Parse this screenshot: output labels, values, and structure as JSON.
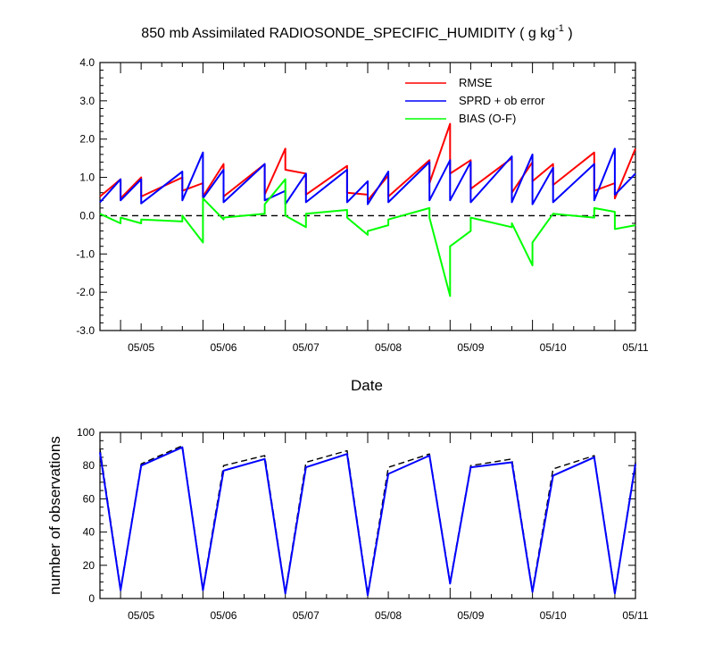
{
  "chart_data": [
    {
      "type": "line",
      "title": "850 mb Assimilated RADIOSONDE_SPECIFIC_HUMIDITY ( g kg",
      "title_sup": "-1",
      "title_end": " )",
      "xlabel": "Date",
      "ylabel": "",
      "ylim": [
        -3.0,
        4.0
      ],
      "xlim": [
        4.5,
        11.0
      ],
      "yticks": [
        "-3.0",
        "-2.0",
        "-1.0",
        "0.0",
        "1.0",
        "2.0",
        "3.0",
        "4.0"
      ],
      "xtick_labels": [
        "05/05",
        "05/06",
        "05/07",
        "05/08",
        "05/09",
        "05/10",
        "05/11"
      ],
      "zero_line": "dashed",
      "legend_position": "top-right",
      "series": [
        {
          "name": "RMSE",
          "color": "#ff0000",
          "x": [
            4.5,
            4.75,
            4.75,
            5.0,
            5.0,
            5.5,
            5.5,
            5.75,
            5.75,
            6.0,
            6.0,
            6.5,
            6.5,
            6.75,
            6.75,
            7.0,
            7.0,
            7.5,
            7.5,
            7.75,
            7.75,
            8.0,
            8.0,
            8.5,
            8.5,
            8.75,
            8.75,
            9.0,
            9.0,
            9.5,
            9.5,
            9.75,
            9.75,
            10.0,
            10.0,
            10.5,
            10.5,
            10.75,
            10.75,
            11.0
          ],
          "y": [
            0.5,
            0.95,
            0.45,
            1.0,
            0.5,
            1.0,
            0.65,
            0.85,
            0.5,
            1.35,
            0.5,
            1.35,
            0.55,
            1.75,
            1.2,
            1.1,
            0.55,
            1.3,
            0.6,
            0.55,
            0.4,
            1.05,
            0.5,
            1.45,
            0.85,
            2.4,
            1.1,
            1.45,
            0.7,
            1.5,
            0.6,
            1.4,
            0.9,
            1.35,
            0.8,
            1.65,
            0.65,
            0.85,
            0.45,
            1.75
          ]
        },
        {
          "name": "SPRD + ob error",
          "color": "#0000ff",
          "x": [
            4.5,
            4.75,
            4.75,
            5.0,
            5.0,
            5.5,
            5.5,
            5.75,
            5.75,
            6.0,
            6.0,
            6.5,
            6.5,
            6.75,
            6.75,
            7.0,
            7.0,
            7.5,
            7.5,
            7.75,
            7.75,
            8.0,
            8.0,
            8.5,
            8.5,
            8.75,
            8.75,
            9.0,
            9.0,
            9.5,
            9.5,
            9.75,
            9.75,
            10.0,
            10.0,
            10.5,
            10.5,
            10.75,
            10.75,
            11.0
          ],
          "y": [
            0.35,
            0.95,
            0.4,
            0.95,
            0.32,
            1.15,
            0.4,
            1.65,
            0.45,
            1.2,
            0.35,
            1.35,
            0.4,
            0.65,
            0.3,
            1.1,
            0.35,
            1.2,
            0.35,
            0.9,
            0.3,
            1.15,
            0.35,
            1.4,
            0.4,
            1.45,
            0.4,
            1.4,
            0.35,
            1.55,
            0.35,
            1.6,
            0.3,
            1.25,
            0.35,
            1.35,
            0.4,
            1.75,
            0.55,
            1.1
          ]
        },
        {
          "name": "BIAS (O-F)",
          "color": "#00ff00",
          "x": [
            4.5,
            4.75,
            4.75,
            5.0,
            5.0,
            5.5,
            5.5,
            5.75,
            5.75,
            6.0,
            6.0,
            6.5,
            6.5,
            6.75,
            6.75,
            7.0,
            7.0,
            7.5,
            7.5,
            7.75,
            7.75,
            8.0,
            8.0,
            8.5,
            8.5,
            8.75,
            8.75,
            9.0,
            9.0,
            9.5,
            9.5,
            9.75,
            9.75,
            10.0,
            10.0,
            10.5,
            10.5,
            10.75,
            10.75,
            11.0
          ],
          "y": [
            0.05,
            -0.2,
            -0.05,
            -0.2,
            -0.1,
            -0.15,
            0.0,
            -0.7,
            0.45,
            -0.1,
            -0.05,
            0.05,
            0.3,
            0.95,
            0.0,
            -0.3,
            0.05,
            0.15,
            -0.05,
            -0.5,
            -0.4,
            -0.25,
            -0.1,
            0.2,
            -0.05,
            -2.1,
            -0.8,
            -0.4,
            -0.05,
            -0.3,
            -0.2,
            -1.3,
            -0.7,
            0.05,
            0.05,
            -0.05,
            0.2,
            0.1,
            -0.35,
            -0.25
          ]
        }
      ]
    },
    {
      "type": "line",
      "ylabel": "number of observations",
      "ylim": [
        0,
        100
      ],
      "xlim": [
        4.5,
        11.0
      ],
      "yticks": [
        "0",
        "20",
        "40",
        "60",
        "80",
        "100"
      ],
      "xtick_labels": [
        "05/05",
        "05/06",
        "05/07",
        "05/08",
        "05/09",
        "05/10",
        "05/11"
      ],
      "series": [
        {
          "style": "dashed",
          "color": "#000000",
          "x": [
            4.5,
            4.75,
            5.0,
            5.5,
            5.75,
            6.0,
            6.5,
            6.75,
            7.0,
            7.5,
            7.75,
            8.0,
            8.5,
            8.75,
            9.0,
            9.5,
            9.75,
            10.0,
            10.5,
            10.75,
            11.0
          ],
          "y": [
            90,
            6,
            81,
            92,
            6,
            80,
            86,
            4,
            82,
            89,
            3,
            79,
            87,
            10,
            80,
            84,
            5,
            78,
            86,
            4,
            82
          ]
        },
        {
          "style": "solid",
          "color": "#0000ff",
          "x": [
            4.5,
            4.75,
            5.0,
            5.5,
            5.75,
            6.0,
            6.5,
            6.75,
            7.0,
            7.5,
            7.75,
            8.0,
            8.5,
            8.75,
            9.0,
            9.5,
            9.75,
            10.0,
            10.5,
            10.75,
            11.0
          ],
          "y": [
            88,
            5,
            80,
            91,
            5,
            77,
            84,
            3,
            79,
            87,
            2,
            75,
            86,
            9,
            79,
            82,
            4,
            74,
            85,
            3,
            81
          ]
        }
      ]
    }
  ]
}
